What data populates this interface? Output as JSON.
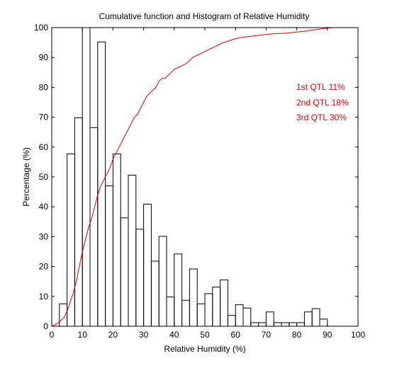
{
  "chart_data": {
    "type": "histogram+line",
    "title": "Cumulative function and Histogram of Relative Humidity",
    "xlabel": "Relative Humidity (%)",
    "ylabel": "Percentage (%)",
    "xlim": [
      0,
      100
    ],
    "ylim": [
      0,
      100
    ],
    "xticks": [
      0,
      10,
      20,
      30,
      40,
      50,
      60,
      70,
      80,
      90,
      100
    ],
    "yticks": [
      0,
      10,
      20,
      30,
      40,
      50,
      60,
      70,
      80,
      90,
      100
    ],
    "grid": false,
    "histogram": {
      "color": "#000000",
      "bin_width": 2.5,
      "bin_start": 2.5,
      "values": [
        7.5,
        57.7,
        69.8,
        100,
        66.5,
        95.2,
        47,
        57.7,
        36.3,
        50.6,
        32.5,
        40.9,
        21.8,
        30.1,
        9.8,
        24.2,
        8.7,
        19.2,
        7.5,
        10.9,
        13.1,
        15.5,
        3.6,
        7.2,
        6.1,
        1.2,
        1.2,
        4.8,
        1.2,
        1.2,
        1.2,
        1.2,
        4.8,
        5.9,
        2.4,
        0
      ]
    },
    "cumulative": {
      "color": "#e00000",
      "x": [
        0,
        2,
        3,
        4,
        5,
        6,
        7,
        8,
        9,
        10,
        11,
        12,
        13,
        14,
        15,
        16,
        17,
        18,
        19,
        20,
        21,
        22,
        23,
        24,
        25,
        26,
        27,
        28,
        29,
        30,
        31,
        32,
        33,
        34,
        35,
        36,
        37,
        38,
        39,
        40,
        41,
        42,
        43,
        44,
        45,
        46,
        47,
        48,
        49,
        50,
        51,
        52,
        53,
        54,
        55,
        56,
        57,
        58,
        59,
        60,
        62,
        64,
        66,
        68,
        70,
        72,
        74,
        76,
        78,
        80,
        82,
        84,
        86,
        88,
        90,
        92,
        95,
        100
      ],
      "y": [
        0,
        1,
        2,
        3,
        5,
        8,
        11,
        15,
        20,
        25,
        29,
        33,
        36,
        40,
        44,
        47,
        49,
        51,
        53,
        56,
        58,
        60,
        62,
        64,
        66,
        68,
        70,
        71,
        73,
        75,
        77,
        78,
        79,
        80,
        82,
        83,
        83,
        84,
        85,
        86,
        86.5,
        87,
        87.5,
        88,
        89,
        90,
        90.5,
        91,
        91.5,
        92,
        92.5,
        93,
        93.5,
        94,
        94.5,
        95,
        95.3,
        95.6,
        96,
        96.3,
        96.7,
        97,
        97.2,
        97.5,
        97.7,
        97.9,
        98,
        98.1,
        98.3,
        98.5,
        98.7,
        99,
        99.3,
        99.6,
        99.8,
        100,
        100,
        100
      ]
    },
    "annotations": [
      {
        "text": "1st QTL  11%"
      },
      {
        "text": "2nd QTL  18%"
      },
      {
        "text": "3rd QTL  30%"
      }
    ]
  }
}
